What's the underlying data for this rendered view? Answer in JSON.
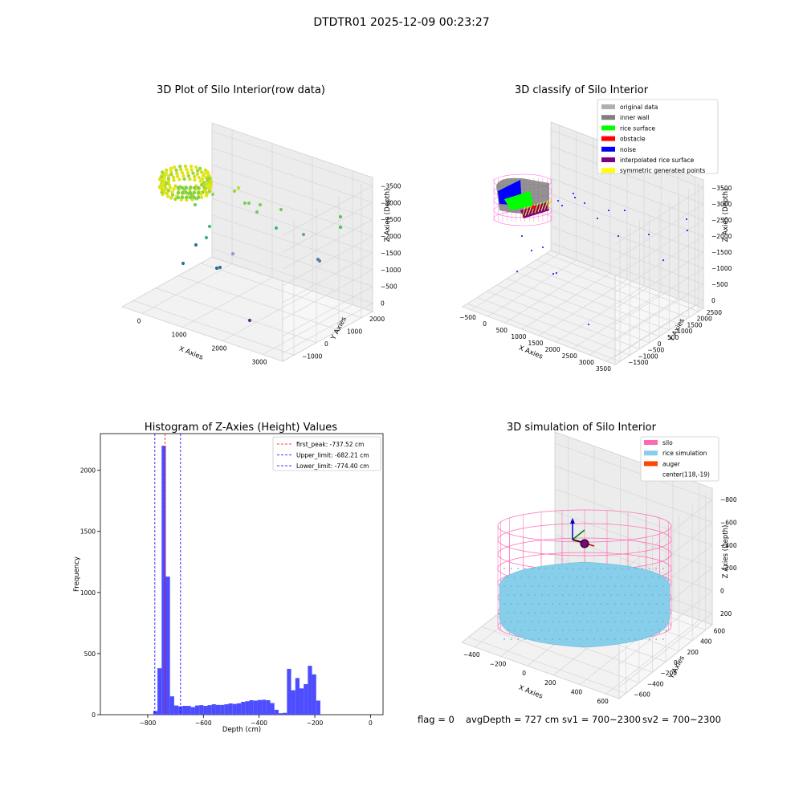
{
  "figure_title": "DTDTR01 2025-12-09 00:23:27",
  "footer": {
    "flag": "flag = 0",
    "avg_depth": "avgDepth = 727 cm",
    "sv1": "sv1 = 700~2300",
    "sv2": "sv2 = 700~2300"
  },
  "colors": {
    "original": "#b0b0b0",
    "inner_wall": "#808080",
    "rice_surface": "#00ff00",
    "obstacle": "#ff0000",
    "noise": "#0000ff",
    "interp": "#800080",
    "symmetric": "#ffff00",
    "silo": "#ff69b4",
    "rice_sim": "#87ceeb",
    "auger": "#ff4500",
    "hist_bar": "#4d4dff"
  },
  "chart_data": [
    {
      "type": "scatter",
      "projection": "3d",
      "title": "3D Plot of Silo Interior(row data)",
      "xlabel": "X Axies",
      "ylabel": "Y Axies",
      "zlabel": "Z Axies (Depth)",
      "x_ticks": [
        "0",
        "1000",
        "2000",
        "3000"
      ],
      "y_ticks": [
        "−1000",
        "0",
        "1000",
        "2000"
      ],
      "z_ticks": [
        "0",
        "−500",
        "−1000",
        "−1500",
        "−2000",
        "−2500",
        "−3000",
        "−3500"
      ],
      "grid": true,
      "colormap": "viridis"
    },
    {
      "type": "scatter",
      "projection": "3d",
      "title": "3D classify of Silo Interior",
      "xlabel": "X Axies",
      "ylabel": "Y Axies",
      "zlabel": "Z Axies (Depth)",
      "x_ticks": [
        "−500",
        "0",
        "500",
        "1000",
        "1500",
        "2000",
        "2500",
        "3000",
        "3500"
      ],
      "y_ticks": [
        "−1500",
        "−1000",
        "−500",
        "0",
        "500",
        "1000",
        "1500",
        "2000",
        "2500"
      ],
      "z_ticks": [
        "0",
        "−500",
        "−1000",
        "−1500",
        "−2000",
        "−2500",
        "−3000",
        "−3500"
      ],
      "legend_location": "top-right",
      "legend": [
        "original data",
        "inner wall",
        "rice surface",
        "obstacle",
        "noise",
        "interpolated rice surface",
        "symmetric generated points"
      ],
      "grid": true
    },
    {
      "type": "bar",
      "title": "Histogram of Z-Axies (Height) Values",
      "xlabel": "Depth (cm)",
      "ylabel": "Frequency",
      "xlim": [
        -970,
        45
      ],
      "ylim": [
        0,
        2300
      ],
      "x_ticks": [
        -800,
        -600,
        -400,
        -200,
        0
      ],
      "x_tick_labels": [
        "−800",
        "−600",
        "−400",
        "−200",
        "0"
      ],
      "y_ticks": [
        0,
        500,
        1000,
        1500,
        2000
      ],
      "bin_width": 15,
      "bin_start": -780,
      "values": [
        30,
        380,
        2200,
        1130,
        150,
        75,
        68,
        72,
        72,
        62,
        75,
        78,
        72,
        78,
        85,
        80,
        80,
        85,
        92,
        88,
        93,
        105,
        110,
        118,
        115,
        120,
        122,
        118,
        95,
        40,
        12,
        15,
        375,
        200,
        300,
        215,
        250,
        400,
        330,
        115
      ],
      "vlines": [
        {
          "label": "first_peak: -737.52 cm",
          "x": -737.52,
          "color": "#ff0000"
        },
        {
          "label": "Upper_limit: -682.21 cm",
          "x": -682.21,
          "color": "#0000ff"
        },
        {
          "label": "Lower_limit: -774.40 cm",
          "x": -774.4,
          "color": "#0000ff"
        }
      ],
      "legend_location": "top-right"
    },
    {
      "type": "scatter",
      "projection": "3d",
      "title": "3D simulation of Silo Interior",
      "xlabel": "X Axies",
      "ylabel": "Y Axies",
      "zlabel": "Z Axies (Depth)",
      "x_ticks": [
        "−400",
        "−200",
        "0",
        "200",
        "400",
        "600"
      ],
      "y_ticks": [
        "−600",
        "−400",
        "−200",
        "0",
        "200",
        "400",
        "600"
      ],
      "z_ticks": [
        "200",
        "0",
        "−200",
        "−400",
        "−600",
        "−800"
      ],
      "legend": [
        "silo",
        "rice simulation",
        "auger",
        "center(118,-19)"
      ],
      "legend_location": "top-right",
      "grid": true
    }
  ]
}
